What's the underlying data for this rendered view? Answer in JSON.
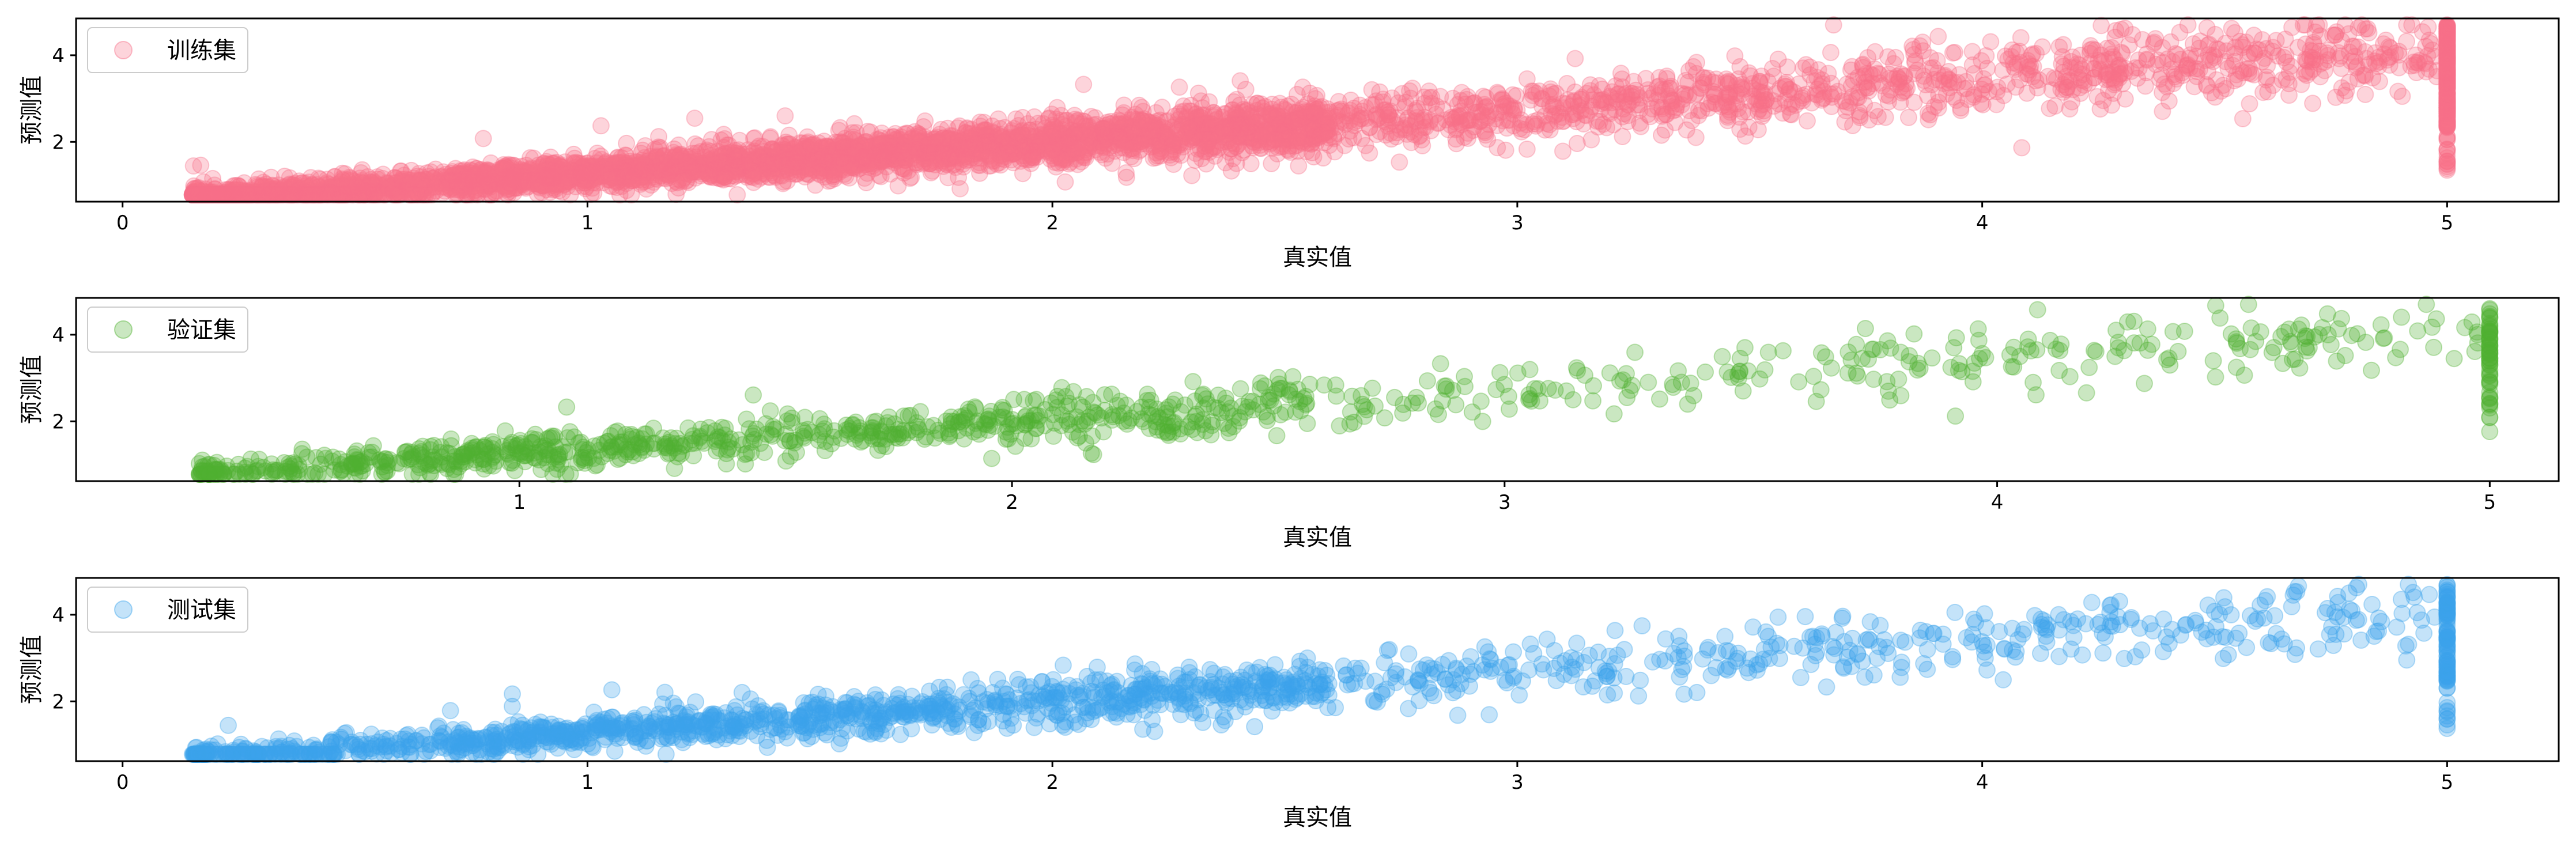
{
  "chart_data": [
    {
      "type": "scatter",
      "title": "",
      "legend": "训练集",
      "legend_position": "top-left",
      "xlabel": "真实值",
      "ylabel": "预测值",
      "xlim": [
        -0.1,
        5.24
      ],
      "ylim": [
        0.62,
        4.85
      ],
      "xticks": [
        0,
        1,
        2,
        3,
        4,
        5
      ],
      "yticks": [
        2,
        4
      ],
      "color": "#f77189",
      "marker_alpha": 0.3,
      "trend": {
        "x_range": [
          0.15,
          5.0
        ],
        "slope": 0.72,
        "intercept": 0.55
      }
    },
    {
      "type": "scatter",
      "title": "",
      "legend": "验证集",
      "legend_position": "top-left",
      "xlabel": "真实值",
      "ylabel": "预测值",
      "xlim": [
        0.1,
        5.14
      ],
      "ylim": [
        0.62,
        4.85
      ],
      "xticks": [
        1,
        2,
        3,
        4,
        5
      ],
      "yticks": [
        2,
        4
      ],
      "color": "#50b131",
      "marker_alpha": 0.3,
      "trend": {
        "x_range": [
          0.35,
          5.0
        ],
        "slope": 0.72,
        "intercept": 0.55
      }
    },
    {
      "type": "scatter",
      "title": "",
      "legend": "测试集",
      "legend_position": "top-left",
      "xlabel": "真实值",
      "ylabel": "预测值",
      "xlim": [
        -0.1,
        5.24
      ],
      "ylim": [
        0.62,
        4.85
      ],
      "xticks": [
        0,
        1,
        2,
        3,
        4,
        5
      ],
      "yticks": [
        2,
        4
      ],
      "color": "#3ba3ec",
      "marker_alpha": 0.3,
      "trend": {
        "x_range": [
          0.15,
          5.0
        ],
        "slope": 0.72,
        "intercept": 0.55
      }
    }
  ]
}
